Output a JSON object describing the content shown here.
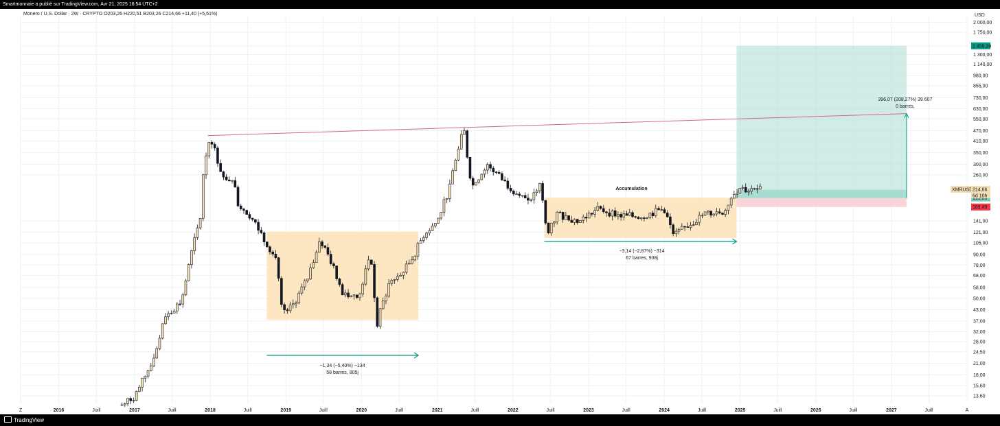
{
  "header": {
    "published_text": "Smartmonnaie a publié sur TradingView.com, Avr 21, 2025 16:54 UTC+2",
    "legend": "Monero / U.S. Dollar · 2W · CRYPTO",
    "ohlc": "O203,26  H220,51  B203,26  C214,66  +11,40 (+5,61%)"
  },
  "footer": {
    "brand": "TradingView"
  },
  "chart_data": {
    "type": "candlestick",
    "symbol": "XMRUSD",
    "currency": "USD",
    "scale": "log",
    "ylim": [
      12.3,
      2180
    ],
    "y_ticks": [
      "2 000,00",
      "1 750,00",
      "1 459,39",
      "1 300,00",
      "1 140,00",
      "980,00",
      "855,00",
      "730,00",
      "630,00",
      "550,00",
      "470,00",
      "410,00",
      "350,00",
      "300,00",
      "260,00",
      "141,00",
      "121,00",
      "105,00",
      "90,00",
      "78,00",
      "68,00",
      "58,00",
      "50,00",
      "43,00",
      "37,00",
      "32,00",
      "28,00",
      "24,50",
      "21,00",
      "18,00",
      "15,60",
      "13,60"
    ],
    "x_ticks": [
      "Z",
      "2016",
      "Juill",
      "2017",
      "Juill",
      "2018",
      "Juill",
      "2019",
      "Juill",
      "2020",
      "Juill",
      "2021",
      "Juill",
      "2022",
      "Juill",
      "2023",
      "Juill",
      "2024",
      "Juill",
      "2025",
      "Juill",
      "2026",
      "Juill",
      "2027",
      "Juill",
      "A"
    ],
    "last_price": {
      "symbol": "XMRUSD",
      "value": "214,66",
      "countdown": "6d 10h"
    },
    "price_path": [
      [
        "2016-11-01",
        12.0
      ],
      [
        "2017-01-01",
        13.5
      ],
      [
        "2017-04-01",
        22
      ],
      [
        "2017-06-01",
        40
      ],
      [
        "2017-08-15",
        48
      ],
      [
        "2017-10-01",
        90
      ],
      [
        "2017-11-15",
        150
      ],
      [
        "2017-12-01",
        300
      ],
      [
        "2018-01-01",
        440
      ],
      [
        "2018-02-15",
        290
      ],
      [
        "2018-03-15",
        230
      ],
      [
        "2018-04-15",
        260
      ],
      [
        "2018-05-15",
        180
      ],
      [
        "2018-07-15",
        150
      ],
      [
        "2018-09-01",
        120
      ],
      [
        "2018-11-15",
        85
      ],
      [
        "2018-12-15",
        40
      ],
      [
        "2019-02-01",
        45
      ],
      [
        "2019-04-15",
        65
      ],
      [
        "2019-06-15",
        110
      ],
      [
        "2019-08-01",
        85
      ],
      [
        "2019-10-01",
        55
      ],
      [
        "2019-12-15",
        50
      ],
      [
        "2020-02-15",
        90
      ],
      [
        "2020-03-15",
        33
      ],
      [
        "2020-03-20",
        38
      ],
      [
        "2020-05-15",
        62
      ],
      [
        "2020-07-15",
        70
      ],
      [
        "2020-09-01",
        85
      ],
      [
        "2020-11-01",
        120
      ],
      [
        "2021-01-01",
        140
      ],
      [
        "2021-03-01",
        220
      ],
      [
        "2021-05-07",
        500
      ],
      [
        "2021-06-15",
        220
      ],
      [
        "2021-09-01",
        300
      ],
      [
        "2021-12-01",
        230
      ],
      [
        "2022-03-15",
        180
      ],
      [
        "2022-05-15",
        230
      ],
      [
        "2022-06-15",
        115
      ],
      [
        "2022-08-01",
        155
      ],
      [
        "2022-11-15",
        140
      ],
      [
        "2023-02-15",
        165
      ],
      [
        "2023-06-15",
        150
      ],
      [
        "2023-09-15",
        150
      ],
      [
        "2024-01-01",
        165
      ],
      [
        "2024-02-15",
        115
      ],
      [
        "2024-04-15",
        130
      ],
      [
        "2024-07-15",
        155
      ],
      [
        "2024-10-15",
        160
      ],
      [
        "2024-12-01",
        205
      ],
      [
        "2025-01-01",
        220
      ],
      [
        "2025-02-15",
        210
      ],
      [
        "2025-04-21",
        214.66
      ]
    ],
    "annotations": {
      "accumulation_label": "Accumulation",
      "box1_text1": "−1,34 (−5,40%) −134",
      "box1_text2": "58 barres, 805j",
      "box2_text1": "−3,14 (−2,87%) −314",
      "box2_text2": "67 barres, 938j",
      "target_text1": "396,07 (208,27%) 39 607",
      "target_text2": "0 barres,"
    },
    "boxes": [
      {
        "from": "2018-10-01",
        "to": "2020-10-01",
        "low": 37.5,
        "high": 122,
        "color": "#fde3b8"
      },
      {
        "from": "2022-06-01",
        "to": "2024-12-15",
        "low": 112,
        "high": 192,
        "color": "#fde3b8"
      }
    ],
    "long_position": {
      "from": "2024-12-15",
      "to": "2027-03-15",
      "entry": 191.09,
      "target": 1459.39,
      "stop": 169.49,
      "entry_label": "191,09",
      "target_label": "1 459,39",
      "stop_label": "169,49"
    },
    "trendline": {
      "from": [
        "2017-12-20",
        440
      ],
      "to": [
        "2027-03-15",
        590
      ],
      "color": "#d4687f"
    },
    "colors": {
      "bull": "#f5deb3",
      "bear": "#131722",
      "accent_green": "#089981",
      "accent_red": "#f23645",
      "accumulation": "#d4183a"
    }
  }
}
